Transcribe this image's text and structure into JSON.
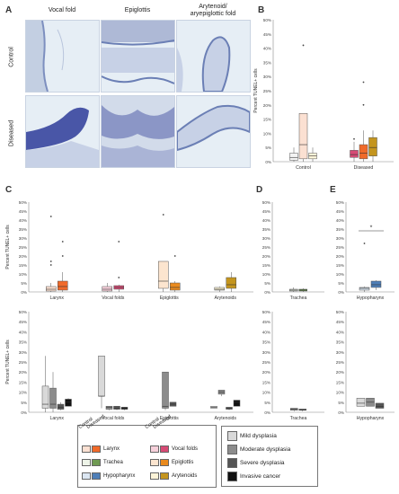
{
  "panel_a": {
    "letter": "A",
    "columns": [
      "Vocal fold",
      "Epiglottis",
      "Arytenoid/\naryepiglottic fold"
    ],
    "rows": [
      "Control",
      "Diseased"
    ]
  },
  "panel_letters": {
    "b": "B",
    "c": "C",
    "d": "D",
    "e": "E"
  },
  "y_axis_label": "Percent TUNEL+ cells",
  "y_ticks": [
    "0%",
    "5%",
    "10%",
    "15%",
    "20%",
    "25%",
    "30%",
    "35%",
    "40%",
    "45%",
    "50%"
  ],
  "significance_mark": "*",
  "legend": {
    "header_control": "Control",
    "header_diseased": "Diseased",
    "tissues": [
      {
        "label": "Larynx",
        "control_color": "#fbe0d2",
        "diseased_color": "#f06a2a"
      },
      {
        "label": "Vocal folds",
        "control_color": "#f6d0da",
        "diseased_color": "#d64b75"
      },
      {
        "label": "Trachea",
        "control_color": "#eef4e8",
        "diseased_color": "#6f9a52"
      },
      {
        "label": "Epiglottis",
        "control_color": "#fce5cf",
        "diseased_color": "#e98a1e"
      },
      {
        "label": "Hypopharynx",
        "control_color": "#dbe6f2",
        "diseased_color": "#4f7fb8"
      },
      {
        "label": "Arytenoids",
        "control_color": "#fdf4d8",
        "diseased_color": "#c4951e"
      }
    ],
    "severity": [
      {
        "label": "Mild dysplasia",
        "color": "#d9d9d9"
      },
      {
        "label": "Moderate dysplasia",
        "color": "#8c8c8c"
      },
      {
        "label": "Severe dysplasia",
        "color": "#555555"
      },
      {
        "label": "Invasive cancer",
        "color": "#111111"
      }
    ]
  },
  "chart_data": [
    {
      "panel": "B",
      "type": "box",
      "ylabel": "Percent TUNEL+ cells",
      "ylim": [
        0,
        50
      ],
      "categories": [
        "Control",
        "Diseased"
      ],
      "boxes": [
        {
          "group": "Control",
          "color": "#f3f3f3",
          "min": 0,
          "q1": 0.5,
          "median": 1.5,
          "q3": 3,
          "max": 5,
          "outliers": []
        },
        {
          "group": "Control",
          "color": "#fbe0d2",
          "min": 0,
          "q1": 1,
          "median": 6,
          "q3": 17,
          "max": 17,
          "outliers": [
            41
          ]
        },
        {
          "group": "Control",
          "color": "#fdf4d8",
          "min": 0,
          "q1": 1,
          "median": 2,
          "q3": 3,
          "max": 5,
          "outliers": []
        },
        {
          "group": "Diseased",
          "color": "#d64b75",
          "min": 0,
          "q1": 1.5,
          "median": 2.5,
          "q3": 4,
          "max": 7,
          "outliers": [
            8
          ]
        },
        {
          "group": "Diseased",
          "color": "#f06a2a",
          "min": 0,
          "q1": 1,
          "median": 3,
          "q3": 6,
          "max": 11,
          "outliers": [
            20,
            28
          ]
        },
        {
          "group": "Diseased",
          "color": "#c4951e",
          "min": 0,
          "q1": 2,
          "median": 5,
          "q3": 8.5,
          "max": 11,
          "outliers": []
        }
      ]
    },
    {
      "panel": "C-top",
      "type": "box",
      "ylabel": "Percent TUNEL+ cells",
      "ylim": [
        0,
        50
      ],
      "categories": [
        "Larynx",
        "Vocal folds",
        "Epiglottis",
        "Arytenoids"
      ],
      "boxes": [
        {
          "group": "Larynx",
          "color": "#fbe0d2",
          "min": 0,
          "q1": 0.5,
          "median": 1.5,
          "q3": 3,
          "max": 5,
          "outliers": [
            15,
            17,
            42
          ]
        },
        {
          "group": "Larynx",
          "color": "#f06a2a",
          "min": 0,
          "q1": 1,
          "median": 3,
          "q3": 6,
          "max": 11,
          "outliers": [
            20,
            28
          ]
        },
        {
          "group": "Vocal folds",
          "color": "#f6d0da",
          "min": 0,
          "q1": 0.5,
          "median": 1.5,
          "q3": 3,
          "max": 5,
          "outliers": []
        },
        {
          "group": "Vocal folds",
          "color": "#d64b75",
          "min": 0,
          "q1": 1.5,
          "median": 2.5,
          "q3": 3.5,
          "max": 4,
          "outliers": [
            8,
            28
          ]
        },
        {
          "group": "Epiglottis",
          "color": "#fce5cf",
          "min": 0,
          "q1": 2,
          "median": 6,
          "q3": 17,
          "max": 17,
          "outliers": [
            43
          ]
        },
        {
          "group": "Epiglottis",
          "color": "#e98a1e",
          "min": 0,
          "q1": 1,
          "median": 2.5,
          "q3": 5,
          "max": 6,
          "outliers": [
            20
          ]
        },
        {
          "group": "Arytenoids",
          "color": "#fdf4d8",
          "min": 0,
          "q1": 1,
          "median": 1.5,
          "q3": 2.5,
          "max": 3,
          "outliers": []
        },
        {
          "group": "Arytenoids",
          "color": "#c4951e",
          "min": 0,
          "q1": 2,
          "median": 4,
          "q3": 8,
          "max": 11,
          "outliers": []
        }
      ]
    },
    {
      "panel": "C-bottom",
      "type": "box",
      "ylabel": "Percent TUNEL+ cells",
      "ylim": [
        0,
        50
      ],
      "categories": [
        "Larynx",
        "Vocal folds",
        "Epiglottis",
        "Arytenoids"
      ],
      "boxes": [
        {
          "group": "Larynx",
          "color": "#d9d9d9",
          "min": 0,
          "q1": 2,
          "median": 4,
          "q3": 13,
          "max": 28,
          "outliers": []
        },
        {
          "group": "Larynx",
          "color": "#8c8c8c",
          "min": 0,
          "q1": 2,
          "median": 4,
          "q3": 12,
          "max": 20,
          "outliers": []
        },
        {
          "group": "Larynx",
          "color": "#555555",
          "min": 1,
          "q1": 1.5,
          "median": 2.5,
          "q3": 4,
          "max": 5,
          "outliers": []
        },
        {
          "group": "Larynx",
          "color": "#111111",
          "min": 3,
          "q1": 3,
          "median": 5,
          "q3": 6.5,
          "max": 7,
          "outliers": []
        },
        {
          "group": "Vocal folds",
          "color": "#d9d9d9",
          "min": 2,
          "q1": 8,
          "median": 8,
          "q3": 28,
          "max": 28,
          "outliers": []
        },
        {
          "group": "Vocal folds",
          "color": "#8c8c8c",
          "min": 1,
          "q1": 1.5,
          "median": 2.5,
          "q3": 3,
          "max": 3,
          "outliers": []
        },
        {
          "group": "Vocal folds",
          "color": "#555555",
          "min": 1,
          "q1": 1.5,
          "median": 2,
          "q3": 3,
          "max": 3,
          "outliers": []
        },
        {
          "group": "Vocal folds",
          "color": "#111111",
          "min": 1,
          "q1": 1.5,
          "median": 2,
          "q3": 2.5,
          "max": 2.5,
          "outliers": []
        },
        {
          "group": "Epiglottis",
          "color": "#8c8c8c",
          "min": 1,
          "q1": 2,
          "median": 3,
          "q3": 20,
          "max": 20,
          "outliers": []
        },
        {
          "group": "Epiglottis",
          "color": "#555555",
          "min": 3,
          "q1": 3,
          "median": 4,
          "q3": 5,
          "max": 5,
          "outliers": []
        },
        {
          "group": "Arytenoids",
          "color": "#d9d9d9",
          "min": 2,
          "q1": 2,
          "median": 2.5,
          "q3": 3,
          "max": 3,
          "outliers": []
        },
        {
          "group": "Arytenoids",
          "color": "#8c8c8c",
          "min": 8,
          "q1": 9,
          "median": 10,
          "q3": 11,
          "max": 11,
          "outliers": []
        },
        {
          "group": "Arytenoids",
          "color": "#555555",
          "min": 1,
          "q1": 1.5,
          "median": 2,
          "q3": 2.5,
          "max": 2.5,
          "outliers": []
        },
        {
          "group": "Arytenoids",
          "color": "#111111",
          "min": 3,
          "q1": 3,
          "median": 5,
          "q3": 6,
          "max": 6,
          "outliers": []
        }
      ]
    },
    {
      "panel": "D-top",
      "type": "box",
      "ylim": [
        0,
        50
      ],
      "categories": [
        "Trachea"
      ],
      "boxes": [
        {
          "group": "Trachea",
          "color": "#eef4e8",
          "min": 0,
          "q1": 0.5,
          "median": 1,
          "q3": 1.5,
          "max": 2.5,
          "outliers": []
        },
        {
          "group": "Trachea",
          "color": "#6f9a52",
          "min": 0,
          "q1": 0.5,
          "median": 1,
          "q3": 1.5,
          "max": 2,
          "outliers": []
        }
      ]
    },
    {
      "panel": "D-bottom",
      "type": "box",
      "ylim": [
        0,
        50
      ],
      "categories": [
        "Trachea"
      ],
      "boxes": [
        {
          "group": "Trachea",
          "color": "#8c8c8c",
          "min": 0.5,
          "q1": 1,
          "median": 1.5,
          "q3": 2,
          "max": 2,
          "outliers": []
        },
        {
          "group": "Trachea",
          "color": "#555555",
          "min": 0.5,
          "q1": 1,
          "median": 1.2,
          "q3": 1.6,
          "max": 1.6,
          "outliers": []
        }
      ]
    },
    {
      "panel": "E-top",
      "type": "box",
      "ylim": [
        0,
        50
      ],
      "categories": [
        "Hypopharynx"
      ],
      "boxes": [
        {
          "group": "Hypopharynx",
          "color": "#dbe6f2",
          "min": 0,
          "q1": 1,
          "median": 2,
          "q3": 2.5,
          "max": 3,
          "outliers": [
            27
          ]
        },
        {
          "group": "Hypopharynx",
          "color": "#4f7fb8",
          "min": 1,
          "q1": 2.5,
          "median": 4,
          "q3": 6,
          "max": 6.5,
          "outliers": []
        }
      ]
    },
    {
      "panel": "E-bottom",
      "type": "box",
      "ylim": [
        0,
        50
      ],
      "categories": [
        "Hypopharynx"
      ],
      "boxes": [
        {
          "group": "Hypopharynx",
          "color": "#d9d9d9",
          "min": 3,
          "q1": 3,
          "median": 4.5,
          "q3": 7,
          "max": 7,
          "outliers": []
        },
        {
          "group": "Hypopharynx",
          "color": "#8c8c8c",
          "min": 3,
          "q1": 3,
          "median": 5,
          "q3": 7,
          "max": 7,
          "outliers": []
        },
        {
          "group": "Hypopharynx",
          "color": "#555555",
          "min": 2,
          "q1": 2,
          "median": 3,
          "q3": 4.5,
          "max": 4.5,
          "outliers": []
        }
      ]
    }
  ]
}
